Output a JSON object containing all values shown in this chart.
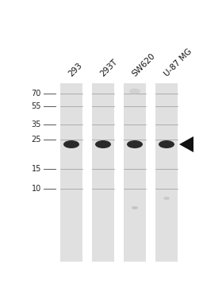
{
  "figure_width": 2.56,
  "figure_height": 3.72,
  "dpi": 100,
  "bg_color": "#ffffff",
  "lane_bg_color": "#e0e0e0",
  "lane_labels": [
    "293",
    "293T",
    "SW620",
    "U-87 MG"
  ],
  "label_rotation": 45,
  "label_fontsize": 7.5,
  "mw_markers": [
    70,
    55,
    35,
    25,
    15,
    10
  ],
  "mw_fontsize": 7,
  "band_color": "#111111",
  "arrow_color": "#111111",
  "tick_color": "#555555",
  "lane_color_dark": "#c8c8c8",
  "faint_color": "#aaaaaa"
}
